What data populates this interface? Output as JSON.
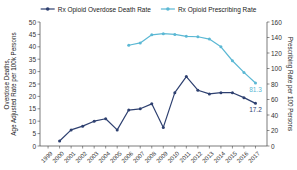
{
  "chart_data": {
    "type": "line",
    "x": [
      1999,
      2000,
      2001,
      2002,
      2003,
      2004,
      2005,
      2006,
      2007,
      2008,
      2009,
      2010,
      2011,
      2012,
      2013,
      2014,
      2015,
      2016,
      2017
    ],
    "xlim": [
      1998.3,
      2018.0
    ],
    "xticks": [
      1999,
      2000,
      2001,
      2002,
      2003,
      2004,
      2005,
      2006,
      2007,
      2008,
      2009,
      2010,
      2011,
      2012,
      2013,
      2014,
      2015,
      2016,
      2017
    ],
    "ylabel": "Overdose Deaths,\nAge Adjusted Rate per 100k Persons",
    "y2label": "Prescribing Rate per 100 Persons",
    "ylim": [
      0,
      50
    ],
    "yticks": [
      0,
      5,
      10,
      15,
      20,
      25,
      30,
      35,
      40,
      45,
      50
    ],
    "y2lim": [
      0,
      160
    ],
    "y2ticks": [
      0,
      20,
      40,
      60,
      80,
      100,
      120,
      140,
      160
    ],
    "grid": false,
    "legend": "top",
    "series": [
      {
        "name": "Rx Opioid Overdose Death Rate",
        "color": "#2e4070",
        "marker": "circle",
        "values": [
          null,
          2.0,
          6.5,
          8.0,
          10.0,
          11.0,
          6.5,
          14.5,
          15.0,
          17.0,
          7.5,
          21.5,
          28.0,
          22.5,
          21.0,
          21.5,
          21.5,
          19.5,
          17.2
        ]
      },
      {
        "name": "Rx Opioid Prescribing Rate",
        "color": "#5bb8d4",
        "marker": "circle",
        "axis": "y2",
        "values": [
          null,
          null,
          null,
          null,
          null,
          null,
          null,
          130.0,
          133.0,
          143.5,
          145.0,
          144.0,
          141.5,
          141.0,
          138.0,
          128.0,
          110.0,
          95.0,
          81.3
        ]
      }
    ],
    "annotations": [
      {
        "text": "17.2",
        "x": 2017,
        "y": 17.2,
        "color": "#2e4070"
      },
      {
        "text": "81.3",
        "x": 2017,
        "y": 81.3,
        "axis": "y2",
        "color": "#5bb8d4"
      }
    ]
  }
}
